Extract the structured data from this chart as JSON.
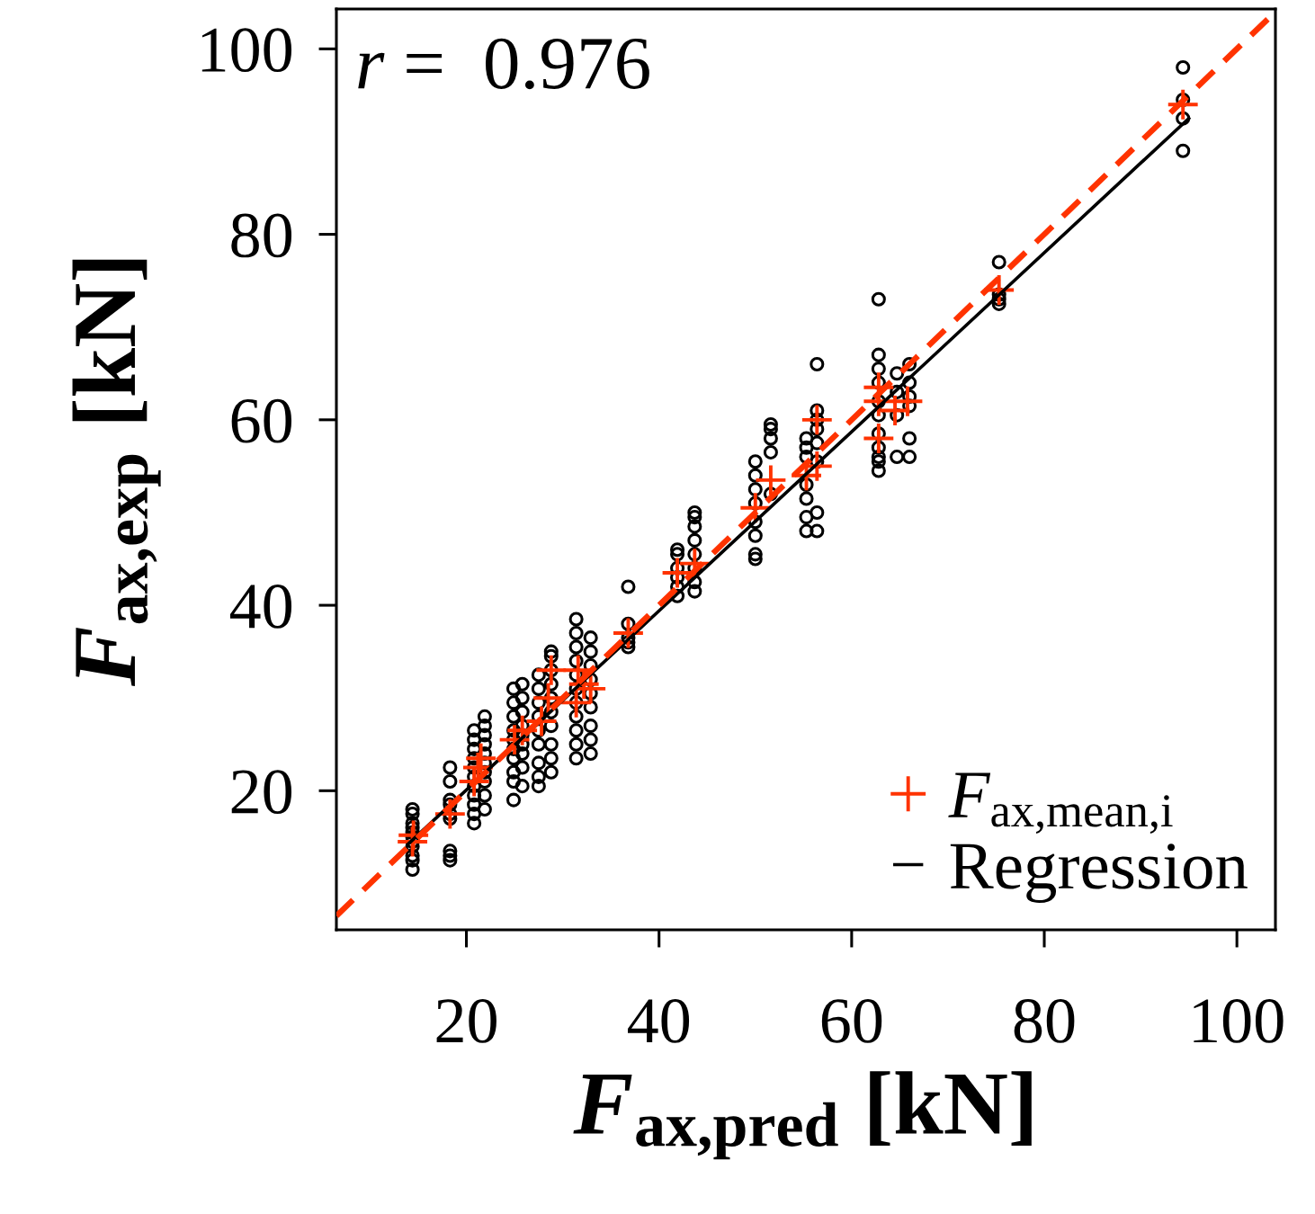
{
  "chart_data": {
    "type": "scatter",
    "xlabel": "F$_{ax,pred}$ [kN]",
    "ylabel": "F$_{ax,exp}$ [kN]",
    "annotations": [
      "r =  0.976"
    ],
    "xlim": [
      6.5,
      104
    ],
    "ylim": [
      5,
      104.3
    ],
    "xticks": [
      20,
      40,
      60,
      80,
      100
    ],
    "yticks": [
      20,
      40,
      60,
      80,
      100
    ],
    "grid": false,
    "legend": "bottom right",
    "series": [
      {
        "color": "#000000",
        "marker": "circle",
        "x": [
          14.4,
          14.4,
          14.4,
          14.4,
          14.4,
          14.4,
          14.4,
          14.4,
          14.4,
          14.4,
          14.4,
          18.3,
          18.3,
          18.3,
          18.3,
          18.3,
          18.3,
          18.3,
          18.3,
          18.3,
          20.8,
          20.8,
          20.8,
          20.8,
          20.8,
          20.8,
          20.8,
          20.8,
          20.8,
          20.8,
          20.8,
          21.9,
          21.9,
          21.9,
          21.9,
          21.9,
          21.9,
          21.9,
          21.9,
          21.9,
          21.9,
          24.9,
          24.9,
          24.9,
          24.9,
          24.9,
          24.9,
          24.9,
          24.9,
          24.9,
          24.9,
          25.8,
          25.8,
          25.8,
          25.8,
          25.8,
          25.8,
          25.8,
          25.8,
          25.8,
          27.5,
          27.5,
          27.5,
          27.5,
          27.5,
          27.5,
          27.5,
          27.5,
          27.5,
          28.8,
          28.8,
          28.8,
          28.8,
          28.8,
          28.8,
          28.8,
          28.8,
          28.8,
          28.8,
          31.4,
          31.4,
          31.4,
          31.4,
          31.4,
          31.4,
          31.4,
          31.4,
          31.4,
          31.4,
          31.4,
          32.9,
          32.9,
          32.9,
          32.9,
          32.9,
          32.9,
          32.9,
          32.9,
          32.9,
          36.8,
          36.8,
          36.8,
          36.8,
          36.8,
          41.9,
          41.9,
          41.9,
          41.9,
          41.9,
          41.9,
          43.7,
          43.7,
          43.7,
          43.7,
          43.7,
          43.7,
          43.7,
          43.7,
          50.0,
          50.0,
          50.0,
          50.0,
          50.0,
          50.0,
          50.0,
          50.0,
          51.6,
          51.6,
          51.6,
          51.6,
          51.6,
          55.3,
          55.3,
          55.3,
          55.3,
          55.3,
          55.3,
          55.3,
          56.4,
          56.4,
          56.4,
          56.4,
          56.4,
          56.4,
          56.4,
          56.4,
          62.8,
          62.8,
          62.8,
          62.8,
          62.8,
          62.8,
          62.8,
          62.8,
          62.8,
          62.8,
          62.8,
          64.7,
          64.7,
          64.7,
          64.7,
          66.0,
          66.0,
          66.0,
          66.0,
          66.0,
          66.0,
          75.3,
          75.3,
          75.3,
          75.3,
          94.4,
          94.4,
          94.4,
          94.4
        ],
        "values": [
          11.5,
          12.5,
          13,
          14,
          14.5,
          15,
          15.5,
          16,
          16.5,
          17.5,
          18,
          12.5,
          13,
          13.5,
          17,
          17.5,
          18.5,
          19,
          21,
          22.5,
          16.5,
          17.5,
          18.5,
          19.5,
          20.5,
          21.5,
          22.5,
          23.5,
          24.5,
          25.5,
          26.5,
          18,
          19.5,
          21,
          22,
          23,
          24,
          25,
          26,
          27,
          28,
          19,
          21,
          22,
          23.5,
          24.5,
          25.5,
          26.5,
          28,
          29.5,
          31,
          20.5,
          22.5,
          24,
          25,
          26,
          27,
          28.5,
          30,
          31.5,
          20.5,
          21.5,
          23,
          25,
          26.5,
          28,
          29.5,
          31,
          32.5,
          22,
          23.5,
          25,
          27,
          28.5,
          30,
          31.5,
          33,
          34.5,
          35,
          23.5,
          25,
          26.5,
          28,
          29.5,
          31,
          32.5,
          34,
          35.5,
          37,
          38.5,
          24,
          25.5,
          27,
          29,
          30.5,
          32,
          33.5,
          35,
          36.5,
          35.5,
          36,
          36.5,
          38,
          42,
          41,
          42,
          43,
          44,
          45.5,
          46,
          41.5,
          42.5,
          44,
          45.5,
          47,
          48.5,
          49.5,
          50,
          45,
          45.5,
          47.5,
          49,
          51,
          52.5,
          54,
          55.5,
          52,
          56.5,
          58,
          59,
          59.5,
          48,
          49.5,
          51.5,
          53,
          56,
          57,
          58,
          48,
          50,
          55.5,
          57.5,
          59,
          60,
          61,
          66,
          54.5,
          55.5,
          56,
          57,
          58.5,
          60.5,
          62,
          64,
          65.5,
          67,
          73,
          56,
          60.5,
          63,
          65,
          56,
          58,
          61.5,
          62.5,
          64,
          66,
          72.5,
          73,
          73.5,
          77,
          89,
          92.5,
          94.5,
          98
        ]
      },
      {
        "name": "F$_{ax,mean,i}$",
        "color": "#ff3300",
        "marker": "cross",
        "x": [
          14.4,
          14.5,
          18.3,
          20.8,
          21.2,
          21.5,
          21.9,
          25,
          25.8,
          27.8,
          28.5,
          28.8,
          31.4,
          31.6,
          32.2,
          32.9,
          36.8,
          41.9,
          43.7,
          50,
          51.6,
          55.3,
          56.4,
          56.4,
          62.8,
          62.8,
          62.8,
          64.5,
          65.8,
          75.3,
          94.4
        ],
        "values": [
          14.5,
          15.2,
          17.5,
          21,
          22.5,
          23.5,
          null,
          25.5,
          26.5,
          27.5,
          30,
          33,
          29.5,
          33,
          31.5,
          31,
          37,
          43.5,
          44.5,
          50.5,
          53.5,
          54,
          55,
          60,
          58,
          62,
          63.5,
          61,
          62,
          74,
          94
        ]
      },
      {
        "type": "line",
        "name": "Regression",
        "color": "#000000",
        "line_style": "solid",
        "x": [
          14,
          95
        ],
        "values": [
          14.3,
          92.5
        ]
      },
      {
        "type": "line",
        "color": "#ff3300",
        "line_style": "dashed",
        "x": [
          6.5,
          104
        ],
        "values": [
          6.5,
          104
        ]
      }
    ]
  }
}
